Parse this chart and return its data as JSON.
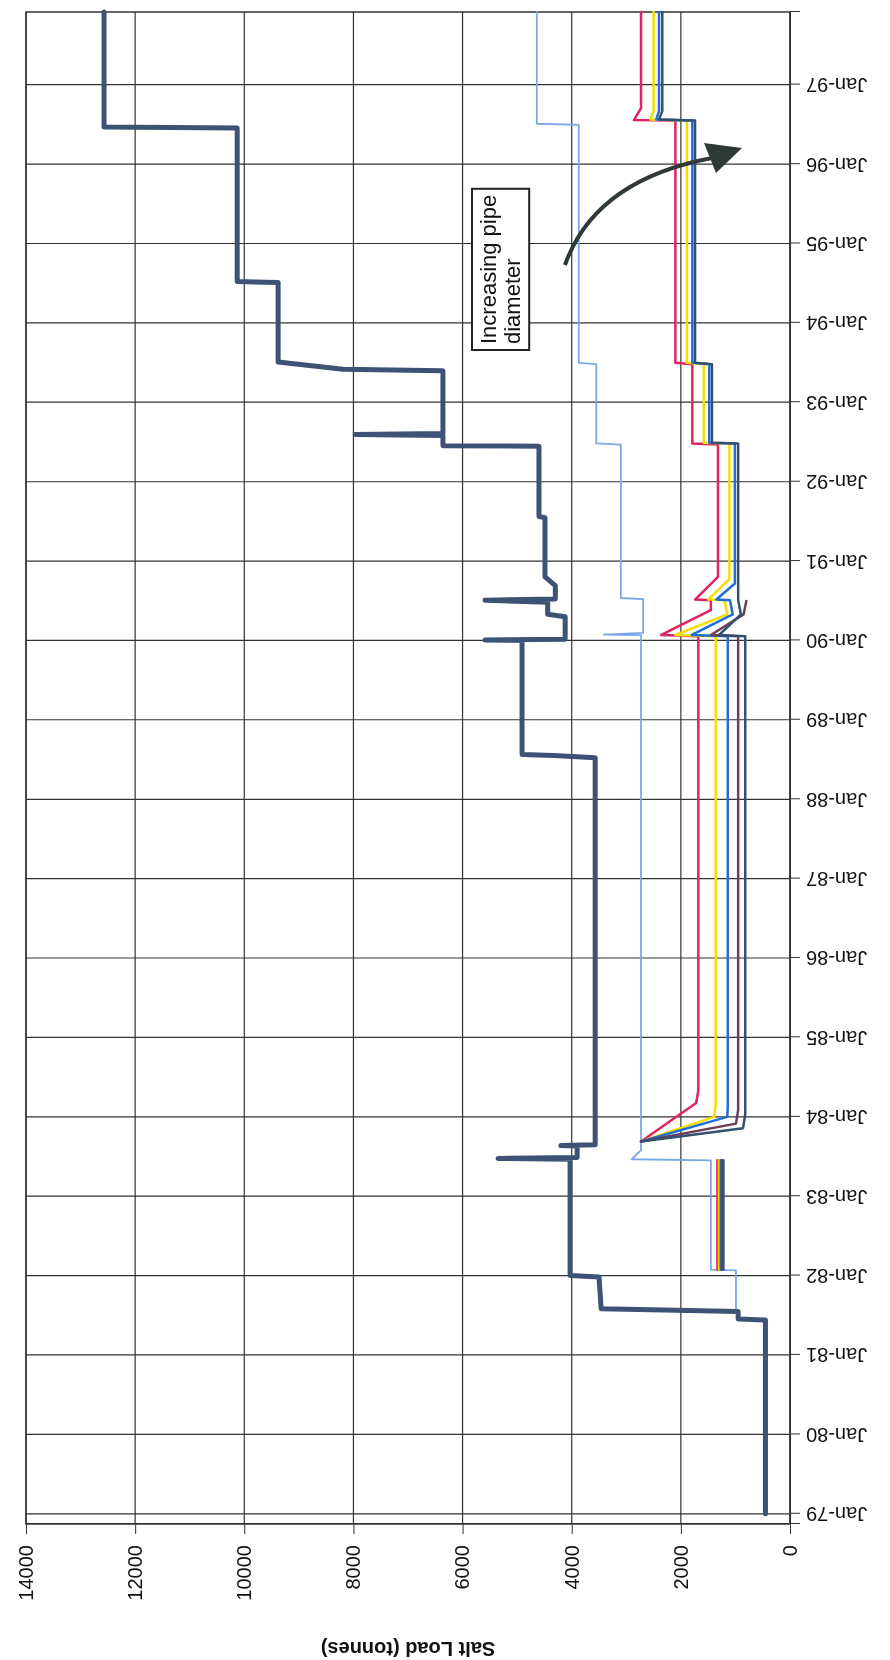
{
  "chart_data": {
    "type": "line",
    "orientation": "horizontal",
    "xlabel": "Salt Load (tonnes)",
    "ylim": [
      "1978-11-15",
      "1997-12-01"
    ],
    "yticks": [
      {
        "value": "1979-01-01",
        "label": "Jan-79"
      },
      {
        "value": "1980-01-01",
        "label": "Jan-80"
      },
      {
        "value": "1981-01-01",
        "label": "Jan-81"
      },
      {
        "value": "1982-01-01",
        "label": "Jan-82"
      },
      {
        "value": "1983-01-01",
        "label": "Jan-83"
      },
      {
        "value": "1984-01-01",
        "label": "Jan-84"
      },
      {
        "value": "1985-01-01",
        "label": "Jan-85"
      },
      {
        "value": "1986-01-01",
        "label": "Jan-86"
      },
      {
        "value": "1987-01-01",
        "label": "Jan-87"
      },
      {
        "value": "1988-01-01",
        "label": "Jan-88"
      },
      {
        "value": "1989-01-01",
        "label": "Jan-89"
      },
      {
        "value": "1990-01-01",
        "label": "Jan-90"
      },
      {
        "value": "1991-01-01",
        "label": "Jan-91"
      },
      {
        "value": "1992-01-01",
        "label": "Jan-92"
      },
      {
        "value": "1993-01-01",
        "label": "Jan-93"
      },
      {
        "value": "1994-01-01",
        "label": "Jan-94"
      },
      {
        "value": "1995-01-01",
        "label": "Jan-95"
      },
      {
        "value": "1996-01-01",
        "label": "Jan-96"
      },
      {
        "value": "1997-01-01",
        "label": "Jan-97"
      }
    ],
    "xlim": [
      14000,
      0
    ],
    "xticks": [
      14000,
      12000,
      10000,
      8000,
      6000,
      4000,
      2000,
      0
    ],
    "grid": true,
    "annotations": [
      "Increasing pipe diameter"
    ],
    "series": [
      {
        "color": "#3d5275",
        "x": [
          "1979-01-01",
          "1981-06-10",
          "1981-06-15",
          "1981-07-20",
          "1981-08-01",
          "1981-12-25",
          "1982-01-01",
          "1983-06-20",
          "1983-06-24",
          "1983-06-28",
          "1983-08-20",
          "1983-08-22",
          "1983-08-26",
          "1988-07-10",
          "1988-07-20",
          "1988-07-25",
          "1990-01-01",
          "1990-01-03",
          "1990-01-06",
          "1990-04-20",
          "1990-05-01",
          "1990-06-25",
          "1990-07-05",
          "1990-07-10",
          "1990-09-10",
          "1990-10-20",
          "1991-07-20",
          "1991-07-25",
          "1992-06-12",
          "1992-06-15",
          "1992-08-01",
          "1992-08-05",
          "1992-08-10",
          "1993-05-25",
          "1993-06-01",
          "1993-07-05",
          "1994-07-05",
          "1994-07-10",
          "1996-06-15",
          "1996-06-20",
          "1997-12-01"
        ],
        "values": [
          450,
          450,
          950,
          950,
          3460,
          3500,
          4030,
          4030,
          5350,
          3900,
          3900,
          4200,
          3570,
          3570,
          4330,
          4910,
          4910,
          5590,
          4120,
          4120,
          4440,
          4440,
          5590,
          4300,
          4300,
          4490,
          4490,
          4600,
          4600,
          6360,
          6360,
          7970,
          6360,
          6360,
          8190,
          9380,
          9380,
          10130,
          10130,
          12570,
          12570
        ]
      },
      {
        "color": "#7aa7e8",
        "x": [
          "1981-07-20",
          "1982-01-25",
          "1982-01-28",
          "1983-06-15",
          "1983-06-20",
          "1983-08-01",
          "1990-01-25",
          "1990-01-28",
          "1990-02-05",
          "1990-07-10",
          "1990-07-15",
          "1992-06-20",
          "1992-06-25",
          "1993-06-25",
          "1993-07-01",
          "1996-06-30",
          "1996-07-05",
          "1997-12-01"
        ],
        "values": [
          990,
          990,
          1450,
          1450,
          2900,
          2730,
          2730,
          3410,
          2690,
          2690,
          3100,
          3100,
          3550,
          3550,
          3870,
          3870,
          4640,
          4640
        ]
      },
      {
        "color": "#e0245e",
        "x": [
          "1982-01-28",
          "1983-06-15",
          "1983-07-15",
          "1983-09-10",
          "1984-03-05",
          "1984-05-01",
          "1990-01-20",
          "1990-01-26",
          "1990-05-20",
          "1990-07-05",
          "1990-07-08",
          "1990-10-20",
          "1992-06-20",
          "1992-06-25",
          "1993-06-25",
          "1993-07-01",
          "1996-07-20",
          "1996-07-22",
          "1996-09-15",
          "1997-12-01"
        ],
        "values": [
          1330,
          1330,
          null,
          2730,
          1720,
          1680,
          1680,
          2360,
          1450,
          1450,
          1740,
          1320,
          1320,
          1790,
          1790,
          2100,
          2100,
          2860,
          2730,
          2730
        ]
      },
      {
        "color": "#f2de00",
        "x": [
          "1982-01-28",
          "1983-06-15",
          "1983-07-15",
          "1983-09-10",
          "1984-01-01",
          "1984-03-01",
          "1990-01-20",
          "1990-01-26",
          "1990-05-01",
          "1990-07-05",
          "1990-07-08",
          "1990-10-10",
          "1992-06-25",
          "1992-06-28",
          "1993-06-25",
          "1993-07-01",
          "1996-07-20",
          "1996-07-25",
          "1996-09-01",
          "1997-12-01"
        ],
        "values": [
          1300,
          1300,
          null,
          2730,
          1390,
          1360,
          1360,
          2100,
          1150,
          1200,
          1500,
          1110,
          1110,
          1580,
          1580,
          1890,
          1890,
          2560,
          2500,
          2500
        ]
      },
      {
        "color": "#1f6fd6",
        "x": [
          "1982-01-28",
          "1983-06-15",
          "1983-07-15",
          "1983-09-10",
          "1984-01-01",
          "1984-02-15",
          "1990-01-20",
          "1990-01-26",
          "1990-05-01",
          "1990-07-05",
          "1990-07-08",
          "1990-09-20",
          "1992-06-25",
          "1992-06-28",
          "1993-06-25",
          "1993-07-01",
          "1996-07-20",
          "1996-07-25",
          "1996-09-01",
          "1997-12-01"
        ],
        "values": [
          1270,
          1270,
          null,
          2730,
          1150,
          1140,
          1140,
          1800,
          1050,
          1100,
          1350,
          1010,
          1010,
          1480,
          1480,
          1790,
          1790,
          2450,
          2400,
          2400
        ]
      },
      {
        "color": "#6b3f5a",
        "x": [
          "1982-01-28",
          "1983-06-15",
          "1983-07-15",
          "1983-09-10",
          "1983-12-01",
          "1984-02-01",
          "1990-01-20",
          "1990-01-26",
          "1990-05-01",
          "1990-07-01"
        ],
        "values": [
          1250,
          1250,
          null,
          2730,
          990,
          950,
          950,
          1450,
          850,
          800
        ]
      },
      {
        "color": "#34506e",
        "x": [
          "1982-01-28",
          "1983-06-15",
          "1983-07-15",
          "1983-09-10",
          "1983-11-10",
          "1984-01-15",
          "1990-01-20",
          "1990-01-26",
          "1990-05-01",
          "1990-07-05",
          "1990-09-01",
          "1992-06-25",
          "1992-06-28",
          "1993-06-25",
          "1993-07-01",
          "1996-07-20",
          "1996-07-25",
          "1996-09-01",
          "1997-12-01"
        ],
        "values": [
          1220,
          1220,
          null,
          2730,
          860,
          820,
          820,
          1300,
          900,
          950,
          950,
          950,
          1430,
          1430,
          1740,
          1740,
          2400,
          2340,
          2340
        ]
      }
    ]
  }
}
